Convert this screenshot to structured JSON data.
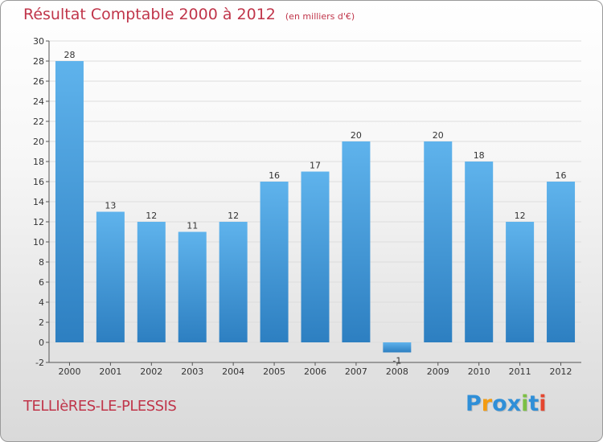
{
  "title": "Résultat Comptable 2000 à 2012",
  "subtitle": "(en milliers d'€)",
  "city": "TELLIèRES-LE-PLESSIS",
  "brand": {
    "letters": [
      "P",
      "r",
      "o",
      "x",
      "i",
      "t",
      "i"
    ],
    "colors": [
      "#2f8fd8",
      "#f39c12",
      "#2f8fd8",
      "#2f8fd8",
      "#7cc043",
      "#2f8fd8",
      "#e5462f"
    ]
  },
  "colors": {
    "title": "#c0354a",
    "bar_light": "#5fb3ec",
    "bar_dark": "#2d7fc1",
    "axis": "#555555",
    "grid": "#dddddd"
  },
  "chart_data": {
    "type": "bar",
    "categories": [
      "2000",
      "2001",
      "2002",
      "2003",
      "2004",
      "2005",
      "2006",
      "2007",
      "2008",
      "2009",
      "2010",
      "2011",
      "2012"
    ],
    "values": [
      28,
      13,
      12,
      11,
      12,
      16,
      17,
      20,
      -1,
      20,
      18,
      12,
      16
    ],
    "data_labels": [
      "28",
      "13",
      "12",
      "11",
      "12",
      "16",
      "17",
      "20",
      "-1",
      "20",
      "18",
      "12",
      "16"
    ],
    "yticks": [
      "-2",
      "0",
      "2",
      "4",
      "6",
      "8",
      "10",
      "12",
      "14",
      "16",
      "18",
      "20",
      "22",
      "24",
      "26",
      "28",
      "30"
    ],
    "ylim": [
      -2,
      30
    ],
    "grid": true
  }
}
